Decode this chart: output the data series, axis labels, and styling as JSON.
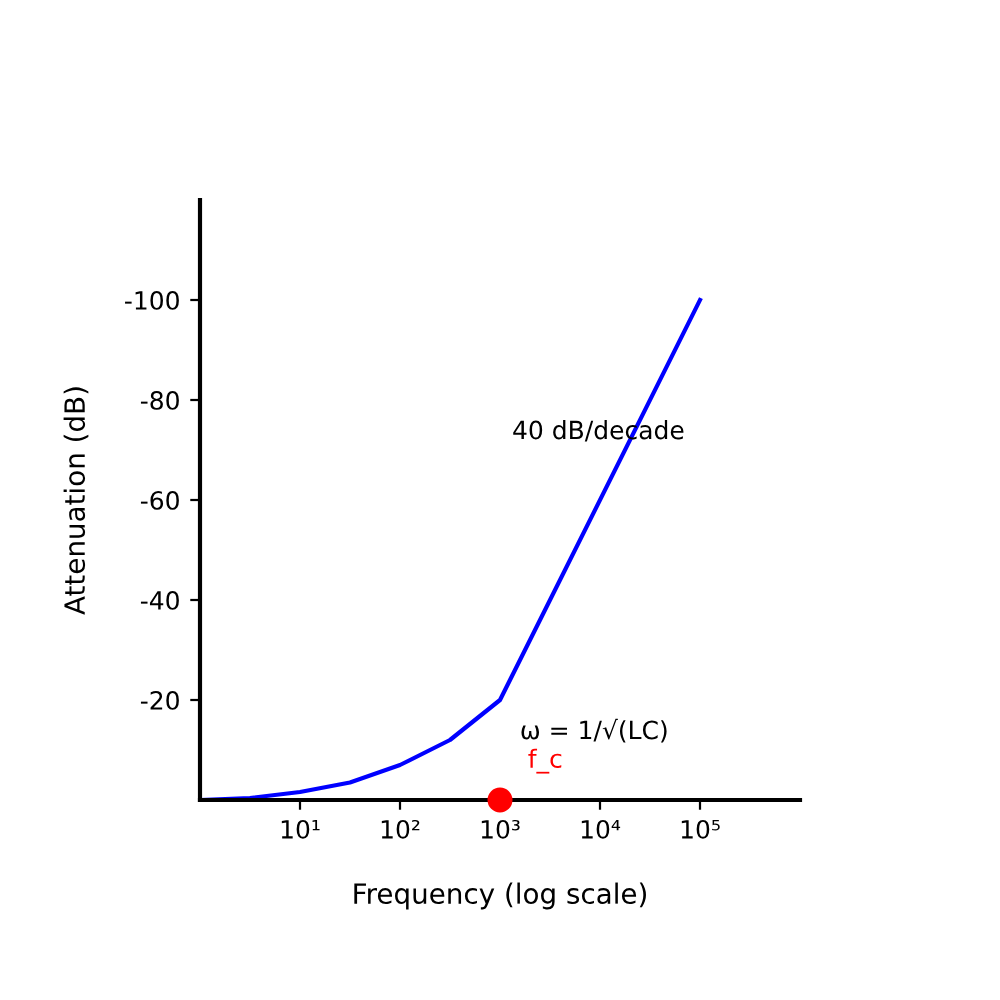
{
  "chart_data": {
    "type": "line",
    "xlabel": "Frequency (log scale)",
    "ylabel": "Attenuation (dB)",
    "log": "x",
    "xlim": [
      1,
      1000000
    ],
    "xticks": [
      {
        "value": 10,
        "label": "10¹"
      },
      {
        "value": 100,
        "label": "10²"
      },
      {
        "value": 1000,
        "label": "10³"
      },
      {
        "value": 10000,
        "label": "10⁴"
      },
      {
        "value": 100000,
        "label": "10⁵"
      }
    ],
    "ylim": [
      0,
      -120
    ],
    "yticks": [
      -100,
      -80,
      -60,
      -40,
      -20
    ],
    "series": [
      {
        "color": "#0000ff",
        "x": [
          1,
          3.16,
          10,
          31.6,
          100,
          316,
          1000,
          100000
        ],
        "values": [
          0,
          -0.4,
          -1.6,
          -3.5,
          -7,
          -12,
          -20,
          -100
        ]
      },
      {
        "type": "scatter",
        "name": "f_c",
        "color": "#ff0000",
        "marker": "circle",
        "x": [
          1000
        ],
        "values": [
          0
        ]
      }
    ],
    "annotations": [
      "40 dB/decade",
      "ω = 1/√(LC)"
    ],
    "grid": false,
    "legend": false
  }
}
